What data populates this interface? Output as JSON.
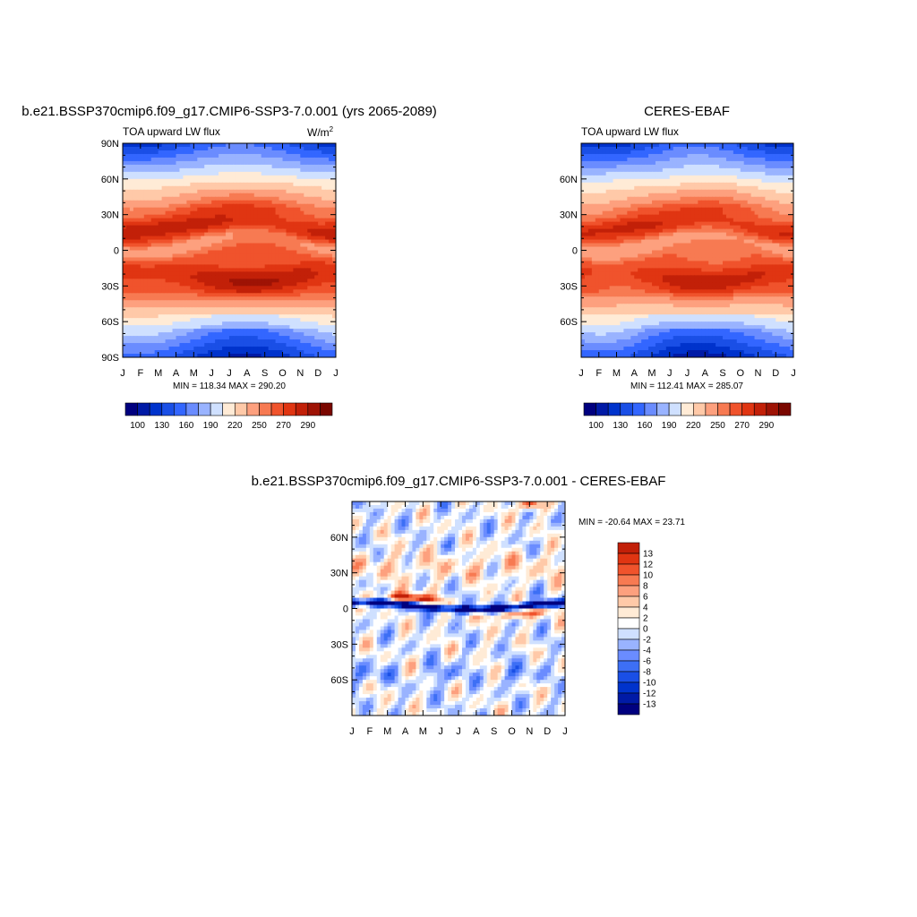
{
  "colors": {
    "main_palette": [
      "#00007f",
      "#001aa6",
      "#0033cc",
      "#1a4fe6",
      "#3366ff",
      "#6a8cff",
      "#99b3ff",
      "#cfe0ff",
      "#ffebd6",
      "#ffc9a8",
      "#fda07e",
      "#f77a52",
      "#f0532c",
      "#e03512",
      "#c22008",
      "#9e1305",
      "#7a0700"
    ],
    "diff_palette": [
      "#00007f",
      "#001aa6",
      "#0033cc",
      "#1a4fe6",
      "#3d6ff5",
      "#6a8cff",
      "#99b3ff",
      "#cfe0ff",
      "#ffffff",
      "#ffebd6",
      "#ffc9a8",
      "#fda07e",
      "#f77a52",
      "#f0532c",
      "#e03512",
      "#c22008",
      "#9e1305",
      "#7a0700"
    ]
  },
  "chart_data": [
    {
      "type": "heatmap",
      "id": "model",
      "title": "b.e21.BSSP370cmip6.f09_g17.CMIP6-SSP3-7.0.001 (yrs 2065-2089)",
      "left_label": "TOA upward LW flux",
      "units": "W/m",
      "units_sup": "2",
      "x_ticks": [
        "J",
        "F",
        "M",
        "A",
        "M",
        "J",
        "J",
        "A",
        "S",
        "O",
        "N",
        "D",
        "J"
      ],
      "y_ticks": [
        "90N",
        "60N",
        "30N",
        "0",
        "30S",
        "60S",
        "90S"
      ],
      "xlim": [
        0,
        12
      ],
      "ylim": [
        -90,
        90
      ],
      "minmax": "MIN = 118.34 MAX = 290.20",
      "colorbar_labels": [
        "100",
        "130",
        "160",
        "190",
        "220",
        "250",
        "270",
        "290"
      ],
      "levels": [
        100,
        115,
        130,
        145,
        160,
        175,
        190,
        205,
        220,
        235,
        250,
        260,
        270,
        280,
        290
      ],
      "values_desc": "zonal mean TOA outgoing longwave flux by month and latitude",
      "min": 118.34,
      "max": 290.2
    },
    {
      "type": "heatmap",
      "id": "obs",
      "title": "CERES-EBAF",
      "left_label": "TOA upward LW flux",
      "x_ticks": [
        "J",
        "F",
        "M",
        "A",
        "M",
        "J",
        "J",
        "A",
        "S",
        "O",
        "N",
        "D",
        "J"
      ],
      "y_ticks": [
        "60N",
        "30N",
        "0",
        "30S",
        "60S"
      ],
      "xlim": [
        0,
        12
      ],
      "ylim": [
        -90,
        90
      ],
      "minmax": "MIN = 112.41 MAX = 285.07",
      "colorbar_labels": [
        "100",
        "130",
        "160",
        "190",
        "220",
        "250",
        "270",
        "290"
      ],
      "levels": [
        100,
        115,
        130,
        145,
        160,
        175,
        190,
        205,
        220,
        235,
        250,
        260,
        270,
        280,
        290
      ],
      "min": 112.41,
      "max": 285.07
    },
    {
      "type": "heatmap",
      "id": "diff",
      "title": "b.e21.BSSP370cmip6.f09_g17.CMIP6-SSP3-7.0.001 - CERES-EBAF",
      "x_ticks": [
        "J",
        "F",
        "M",
        "A",
        "M",
        "J",
        "J",
        "A",
        "S",
        "O",
        "N",
        "D",
        "J"
      ],
      "y_ticks": [
        "60N",
        "30N",
        "0",
        "30S",
        "60S"
      ],
      "xlim": [
        0,
        12
      ],
      "ylim": [
        -90,
        90
      ],
      "minmax": "MIN = -20.64 MAX =  23.71",
      "colorbar_labels": [
        "13",
        "12",
        "10",
        "8",
        "6",
        "4",
        "2",
        "0",
        "-2",
        "-4",
        "-6",
        "-8",
        "-10",
        "-12",
        "-13"
      ],
      "levels": [
        -13,
        -12,
        -10,
        -8,
        -6,
        -4,
        -2,
        0,
        2,
        4,
        6,
        8,
        10,
        12,
        13
      ],
      "min": -20.64,
      "max": 23.71
    }
  ]
}
